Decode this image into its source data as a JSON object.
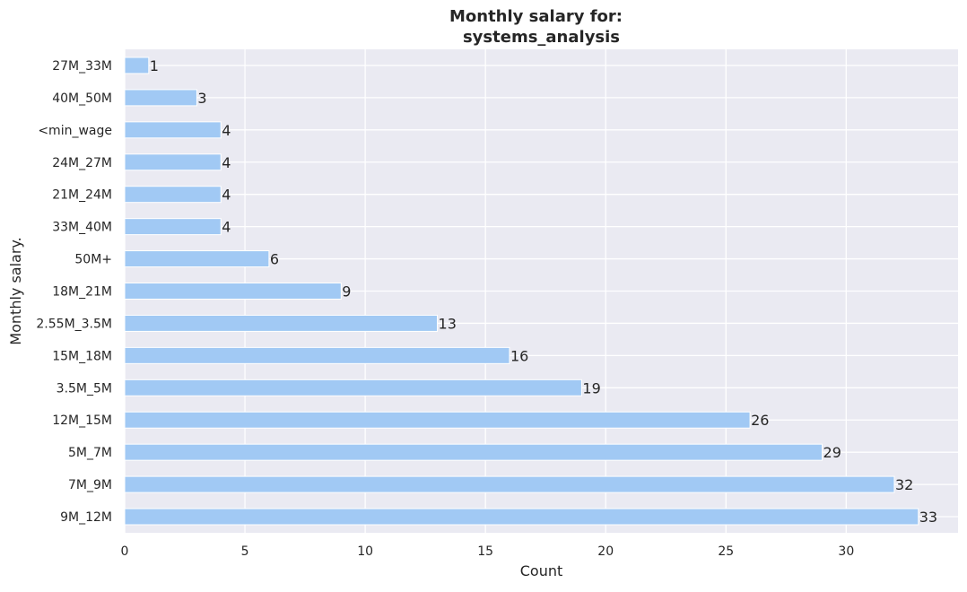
{
  "chart_data": {
    "type": "bar",
    "orientation": "horizontal",
    "title_line1": "Monthly salary for:",
    "title_line2": "systems_analysis",
    "xlabel": "Count",
    "ylabel": "Monthly salary.",
    "xlim": [
      0,
      34.65
    ],
    "xticks": [
      0,
      5,
      10,
      15,
      20,
      25,
      30
    ],
    "grid": true,
    "background_color": "#eaeaf2",
    "bar_color": "#a1c9f4",
    "categories": [
      "27M_33M",
      "40M_50M",
      "<min_wage",
      "24M_27M",
      "21M_24M",
      "33M_40M",
      "50M+",
      "18M_21M",
      "2.55M_3.5M",
      "15M_18M",
      "3.5M_5M",
      "12M_15M",
      "5M_7M",
      "7M_9M",
      "9M_12M"
    ],
    "values": [
      1,
      3,
      4,
      4,
      4,
      4,
      6,
      9,
      13,
      16,
      19,
      26,
      29,
      32,
      33
    ]
  }
}
